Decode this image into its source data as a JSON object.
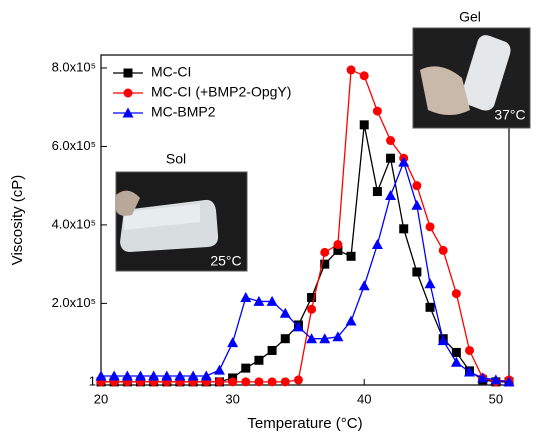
{
  "chart_data": {
    "type": "line",
    "x_label": "Temperature (°C)",
    "y_label": "Viscosity (cP)",
    "x": [
      20,
      21,
      22,
      23,
      24,
      25,
      26,
      27,
      28,
      29,
      30,
      31,
      32,
      33,
      34,
      35,
      36,
      37,
      38,
      39,
      40,
      41,
      42,
      43,
      44,
      45,
      46,
      47,
      48,
      49,
      50,
      51
    ],
    "series": [
      {
        "name": "MC-CI",
        "color": "#000000",
        "marker": "square",
        "values": [
          0,
          0,
          0,
          0,
          0,
          0,
          0,
          0,
          0,
          0,
          10000,
          35000,
          55000,
          80000,
          110000,
          145000,
          215000,
          300000,
          335000,
          320000,
          655000,
          485000,
          570000,
          390000,
          280000,
          190000,
          110000,
          75000,
          28000,
          5000,
          0,
          0
        ]
      },
      {
        "name": "MC-CI (+BMP2-OpgY)",
        "color": "#ff0000",
        "marker": "circle",
        "values": [
          0,
          0,
          0,
          0,
          0,
          0,
          0,
          0,
          0,
          0,
          0,
          0,
          0,
          0,
          0,
          5000,
          185000,
          330000,
          350000,
          795000,
          780000,
          690000,
          615000,
          570000,
          500000,
          395000,
          335000,
          225000,
          80000,
          10000,
          0,
          5000
        ]
      },
      {
        "name": "MC-BMP2",
        "color": "#0000ff",
        "marker": "triangle",
        "values": [
          15000,
          15000,
          15000,
          15000,
          15000,
          15000,
          15000,
          15000,
          15000,
          30000,
          100000,
          215000,
          205000,
          205000,
          175000,
          140000,
          110000,
          110000,
          115000,
          155000,
          245000,
          350000,
          475000,
          560000,
          450000,
          250000,
          105000,
          50000,
          25000,
          10000,
          5000,
          0
        ]
      }
    ],
    "xlim": [
      20,
      51
    ],
    "ylim": [
      -8000,
      833000
    ],
    "xticks": [
      20,
      30,
      40,
      50
    ],
    "yticks": [
      1,
      {
        "value": 200000,
        "label": "2.0x10⁵"
      },
      {
        "value": 400000,
        "label": "4.0x10⁵"
      },
      {
        "value": 600000,
        "label": "6.0x10⁵"
      },
      {
        "value": 800000,
        "label": "8.0x10⁵"
      }
    ],
    "legend": "top-left",
    "annotations": {
      "sol": "Sol",
      "sol_temp": "25°C",
      "gel": "Gel",
      "gel_temp": "37°C"
    }
  }
}
